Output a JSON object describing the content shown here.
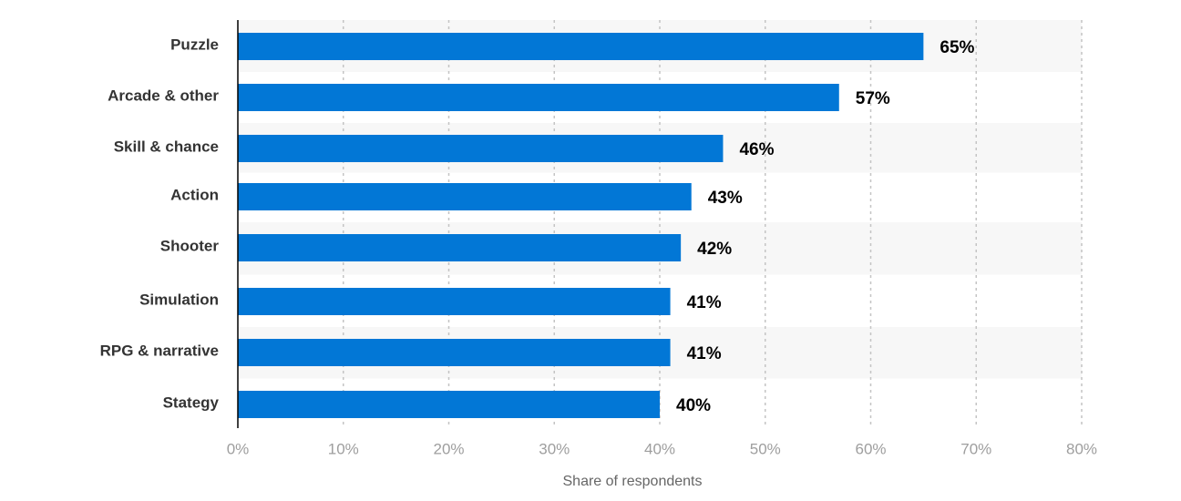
{
  "chart_data": {
    "type": "bar",
    "orientation": "horizontal",
    "categories": [
      "Puzzle",
      "Arcade & other",
      "Skill & chance",
      "Action",
      "Shooter",
      "Simulation",
      "RPG & narrative",
      "Stategy"
    ],
    "values": [
      65,
      57,
      46,
      43,
      42,
      41,
      41,
      40
    ],
    "value_labels": [
      "65%",
      "57%",
      "46%",
      "43%",
      "42%",
      "41%",
      "41%",
      "40%"
    ],
    "xlim": [
      0,
      80
    ],
    "x_ticks": [
      0,
      10,
      20,
      30,
      40,
      50,
      60,
      70,
      80
    ],
    "x_tick_labels": [
      "0%",
      "10%",
      "20%",
      "30%",
      "40%",
      "50%",
      "60%",
      "70%",
      "80%"
    ],
    "xlabel": "Share of respondents",
    "ylabel": "",
    "title": "",
    "grid": true,
    "bar_color": "#0277d6",
    "band_color": "#f7f7f7"
  }
}
